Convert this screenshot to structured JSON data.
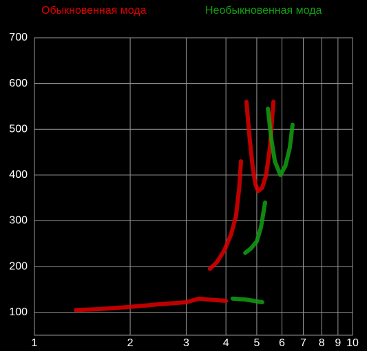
{
  "chart_data": {
    "type": "line",
    "xscale": "log",
    "xlim": [
      1,
      10
    ],
    "xticks": [
      1,
      2,
      3,
      4,
      5,
      6,
      7,
      8,
      9,
      10
    ],
    "ylim": [
      50,
      700
    ],
    "yticks": [
      100,
      200,
      300,
      400,
      500,
      600,
      700
    ],
    "grid": true,
    "series": [
      {
        "name": "Обыкновенная мода",
        "color": "#e00000",
        "x": [
          1.35,
          1.6,
          2.0,
          2.5,
          3.0,
          3.3,
          3.5,
          4.0,
          null,
          3.56,
          3.75,
          3.95,
          4.15,
          4.3,
          4.4,
          4.46,
          null,
          4.64,
          4.75,
          4.85,
          4.95,
          5.05,
          5.2,
          5.35,
          5.5,
          5.64
        ],
        "values": [
          105,
          107,
          112,
          118,
          122,
          130,
          128,
          125,
          null,
          195,
          210,
          235,
          270,
          310,
          370,
          430,
          null,
          560,
          480,
          420,
          380,
          365,
          372,
          400,
          460,
          560
        ]
      },
      {
        "name": "Необыкновенная мода",
        "color": "#12a012",
        "x": [
          4.2,
          4.6,
          5.2,
          null,
          4.6,
          4.8,
          5.0,
          5.15,
          5.31,
          null,
          5.42,
          5.55,
          5.7,
          5.93,
          6.15,
          6.35,
          6.48
        ],
        "values": [
          130,
          128,
          122,
          null,
          230,
          240,
          255,
          285,
          340,
          null,
          545,
          480,
          430,
          400,
          420,
          460,
          510
        ]
      }
    ]
  }
}
